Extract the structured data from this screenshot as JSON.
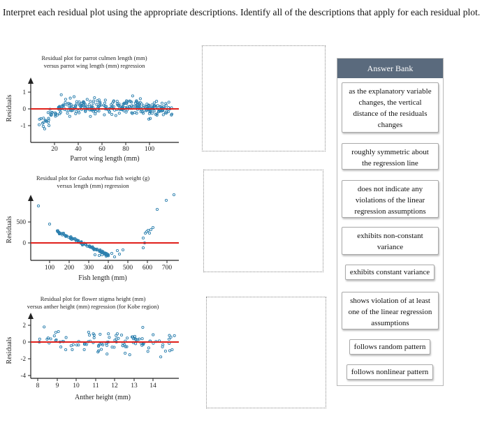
{
  "instructions": "Interpret each residual plot using the appropriate descriptions. Identify all of the descriptions that apply for each residual plot.",
  "plots": [
    {
      "title1": "Residual plot for parrot culmen length (mm)",
      "title2": "versus parrot wing length (mm) regression",
      "ylabel": "Residuals",
      "xlabel": "Parrot wing length (mm)",
      "xticks": [
        "20",
        "40",
        "60",
        "80",
        "100"
      ],
      "yticks": [
        "1",
        "0",
        "-1"
      ]
    },
    {
      "title1_pre": "Residual plot for ",
      "title1_italic": "Gadus morhua",
      "title1_post": " fish weight (g)",
      "title2": "versus length (mm) regression",
      "ylabel": "Residuals",
      "xlabel": "Fish length (mm)",
      "xticks": [
        "100",
        "200",
        "300",
        "400",
        "500",
        "600",
        "700"
      ],
      "yticks": [
        "500",
        "0"
      ]
    },
    {
      "title1": "Residual plot for flower stigma height (mm)",
      "title2": "versus anther height (mm) regression (for Kobe region)",
      "ylabel": "Residuals",
      "xlabel": "Anther height (mm)",
      "xticks": [
        "8",
        "9",
        "10",
        "11",
        "12",
        "13",
        "14"
      ],
      "yticks": [
        "2",
        "0",
        "-2",
        "-4"
      ]
    }
  ],
  "answer_bank": {
    "title": "Answer Bank",
    "items": [
      "as the explanatory variable changes, the vertical distance of the residuals changes",
      "roughly symmetric about the regression line",
      "does not indicate any violations of the linear regression assumptions",
      "exhibits non-constant variance",
      "exhibits constant variance",
      "shows violation of at least one of the linear regression assumptions",
      "follows random pattern",
      "follows nonlinear pattern"
    ]
  },
  "colors": {
    "regression_line": "#e0201b",
    "points": "#2b7fae",
    "bank_header": "#5a6a7d"
  }
}
